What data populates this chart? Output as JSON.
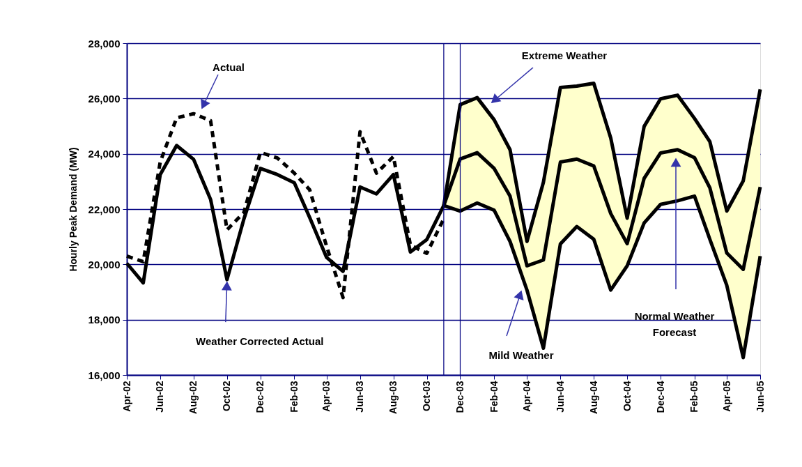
{
  "chart_data": {
    "type": "line",
    "ylabel": "Hourly Peak Demand (MW)",
    "ylim": [
      16000,
      28000
    ],
    "yticks": [
      {
        "value": 16000,
        "label": "16,000"
      },
      {
        "value": 18000,
        "label": "18,000"
      },
      {
        "value": 20000,
        "label": "20,000"
      },
      {
        "value": 22000,
        "label": "22,000"
      },
      {
        "value": 24000,
        "label": "24,000"
      },
      {
        "value": 26000,
        "label": "26,000"
      },
      {
        "value": 28000,
        "label": "28,000"
      }
    ],
    "xlim": [
      "2002-04",
      "2005-06"
    ],
    "xticks": [
      {
        "value": "2002-04",
        "label": "Apr-02"
      },
      {
        "value": "2002-06",
        "label": "Jun-02"
      },
      {
        "value": "2002-08",
        "label": "Aug-02"
      },
      {
        "value": "2002-10",
        "label": "Oct-02"
      },
      {
        "value": "2002-12",
        "label": "Dec-02"
      },
      {
        "value": "2003-02",
        "label": "Feb-03"
      },
      {
        "value": "2003-04",
        "label": "Apr-03"
      },
      {
        "value": "2003-06",
        "label": "Jun-03"
      },
      {
        "value": "2003-08",
        "label": "Aug-03"
      },
      {
        "value": "2003-10",
        "label": "Oct-03"
      },
      {
        "value": "2003-12",
        "label": "Dec-03"
      },
      {
        "value": "2004-02",
        "label": "Feb-04"
      },
      {
        "value": "2004-04",
        "label": "Apr-04"
      },
      {
        "value": "2004-06",
        "label": "Jun-04"
      },
      {
        "value": "2004-08",
        "label": "Aug-04"
      },
      {
        "value": "2004-10",
        "label": "Oct-04"
      },
      {
        "value": "2004-12",
        "label": "Dec-04"
      },
      {
        "value": "2005-02",
        "label": "Feb-05"
      },
      {
        "value": "2005-04",
        "label": "Apr-05"
      },
      {
        "value": "2005-06",
        "label": "Jun-05"
      }
    ],
    "grid": "y",
    "series": [
      {
        "color": "#000000",
        "line_style": "dashed",
        "x": [
          "2002-04",
          "2002-05",
          "2002-06",
          "2002-07",
          "2002-08",
          "2002-09",
          "2002-10",
          "2002-11",
          "2002-12",
          "2003-01",
          "2003-02",
          "2003-03",
          "2003-04",
          "2003-05",
          "2003-06",
          "2003-07",
          "2003-08",
          "2003-09",
          "2003-10",
          "2003-11"
        ],
        "values": [
          20300,
          20100,
          23700,
          25300,
          25450,
          25200,
          21250,
          21880,
          24050,
          23850,
          23300,
          22700,
          20650,
          18800,
          24800,
          23300,
          23900,
          20700,
          20400,
          21650
        ]
      },
      {
        "color": "#000000",
        "line_style": "solid",
        "x": [
          "2003-11",
          "2003-12",
          "2004-01",
          "2004-02",
          "2004-03",
          "2004-04",
          "2004-05",
          "2004-06",
          "2004-07",
          "2004-08",
          "2004-09",
          "2004-10",
          "2004-11",
          "2004-12",
          "2005-01",
          "2005-02",
          "2005-03",
          "2005-04",
          "2005-05",
          "2005-06"
        ],
        "values": [
          22130,
          25780,
          26030,
          25230,
          24150,
          20830,
          22970,
          26400,
          26450,
          26550,
          24570,
          21670,
          24990,
          25990,
          26120,
          25280,
          24440,
          21930,
          23020,
          26330
        ]
      },
      {
        "color": "#000000",
        "line_style": "solid",
        "x": [
          "2003-11",
          "2003-12",
          "2004-01",
          "2004-02",
          "2004-03",
          "2004-04",
          "2004-05",
          "2004-06",
          "2004-07",
          "2004-08",
          "2004-09",
          "2004-10",
          "2004-11",
          "2004-12",
          "2005-01",
          "2005-02",
          "2005-03",
          "2005-04",
          "2005-05",
          "2005-06"
        ],
        "values": [
          22130,
          21930,
          22220,
          21960,
          20830,
          19070,
          16970,
          20740,
          21370,
          20910,
          19070,
          19950,
          21500,
          22170,
          22300,
          22470,
          20910,
          19240,
          16630,
          20300
        ]
      },
      {
        "color": "#000000",
        "line_style": "solid",
        "x": [
          "2002-04",
          "2002-05",
          "2002-06",
          "2002-07",
          "2002-08",
          "2002-09",
          "2002-10",
          "2002-11",
          "2002-12",
          "2003-01",
          "2003-02",
          "2003-03",
          "2003-04",
          "2003-05",
          "2003-06",
          "2003-07",
          "2003-08",
          "2003-09",
          "2003-10",
          "2003-11",
          "2003-12",
          "2004-01",
          "2004-02",
          "2004-03",
          "2004-04",
          "2004-05",
          "2004-06",
          "2004-07",
          "2004-08",
          "2004-09",
          "2004-10",
          "2004-11",
          "2004-12",
          "2005-01",
          "2005-02",
          "2005-03",
          "2005-04",
          "2005-05",
          "2005-06"
        ],
        "values": [
          20040,
          19330,
          23250,
          24300,
          23800,
          22350,
          19450,
          21650,
          23470,
          23250,
          22950,
          21700,
          20250,
          19750,
          22800,
          22550,
          23250,
          20450,
          20900,
          22130,
          23810,
          24040,
          23470,
          22470,
          19950,
          20160,
          23700,
          23810,
          23560,
          21840,
          20750,
          23110,
          24030,
          24150,
          23860,
          22770,
          20410,
          19820,
          22800
        ],
        "upper": [
          null,
          null,
          null,
          null,
          null,
          null,
          null,
          null,
          null,
          null,
          null,
          null,
          null,
          null,
          null,
          null,
          null,
          null,
          null,
          22130,
          25780,
          26030,
          25230,
          24150,
          20830,
          22970,
          26400,
          26450,
          26550,
          24570,
          21670,
          24990,
          25990,
          26120,
          25280,
          24440,
          21930,
          23020,
          26330
        ],
        "lower": [
          null,
          null,
          null,
          null,
          null,
          null,
          null,
          null,
          null,
          null,
          null,
          null,
          null,
          null,
          null,
          null,
          null,
          null,
          null,
          22130,
          21930,
          22220,
          21960,
          20830,
          19070,
          16970,
          20740,
          21370,
          20910,
          19070,
          19950,
          21500,
          22170,
          22300,
          22470,
          20910,
          19240,
          16630,
          20300
        ]
      }
    ],
    "ref_lines": [
      {
        "axis": "x",
        "value": "2003-11",
        "color": "#000080"
      },
      {
        "axis": "x",
        "value": "2003-12",
        "color": "#000080"
      }
    ],
    "annotations": [
      "Actual",
      {
        "text": "Weather Corrected Actual",
        "x": "2002-10",
        "y": 19350
      },
      "Extreme Weather",
      "Mild Weather",
      "Normal Weather\nForecast"
    ]
  }
}
